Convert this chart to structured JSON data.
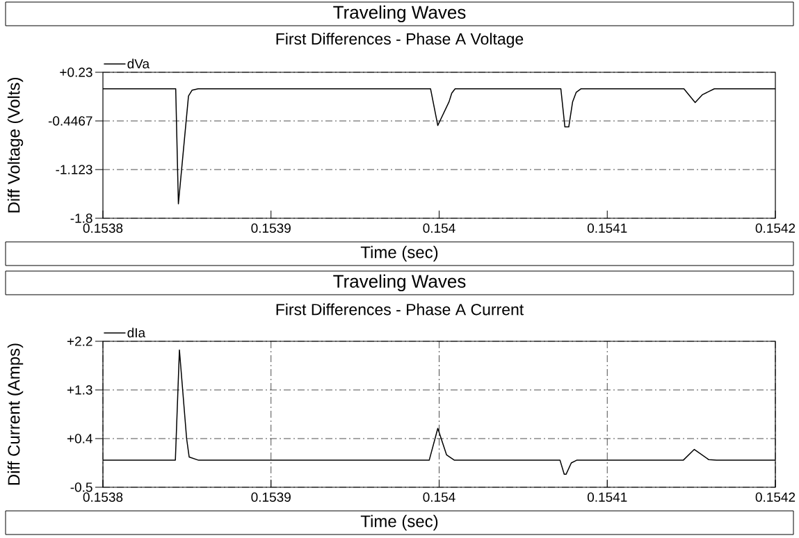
{
  "chart_data": [
    {
      "type": "line",
      "title": "Traveling Waves",
      "subtitle": "First Differences - Phase A Voltage",
      "xlabel": "Time (sec)",
      "ylabel": "Diff Voltage (Volts)",
      "xlim": [
        0.1538,
        0.1542
      ],
      "xticks": [
        0.1538,
        0.1539,
        0.154,
        0.1541,
        0.1542
      ],
      "ylim": [
        -1.8,
        0.23
      ],
      "yticks": [
        {
          "value": 0.23,
          "label": "+0.23"
        },
        -0.4467,
        -1.123,
        -1.8
      ],
      "grid": "y",
      "legend": "top left",
      "series": [
        {
          "name": "dVa",
          "color": "#000000",
          "x": [
            0.1538,
            0.1538433,
            0.1538449,
            0.1538509,
            0.153853,
            0.1538566,
            0.1539949,
            0.1539992,
            0.1540059,
            0.1540075,
            0.1540095,
            0.1540724,
            0.1540748,
            0.1540771,
            0.1540794,
            0.1540815,
            0.1540843,
            0.1541456,
            0.1541523,
            0.1541567,
            0.1541637,
            0.1542
          ],
          "values": [
            0,
            0,
            -1.6,
            -0.1,
            -0.02,
            0,
            0,
            -0.51,
            -0.18,
            -0.06,
            0,
            0,
            -0.53,
            -0.53,
            -0.18,
            -0.05,
            0,
            0,
            -0.19,
            -0.08,
            0,
            0
          ]
        }
      ]
    },
    {
      "type": "line",
      "title": "Traveling Waves",
      "subtitle": "First Differences - Phase A Current",
      "xlabel": "Time (sec)",
      "ylabel": "Diff Current (Amps)",
      "xlim": [
        0.1538,
        0.1542
      ],
      "xticks": [
        0.1538,
        0.1539,
        0.154,
        0.1541,
        0.1542
      ],
      "ylim": [
        -0.5,
        2.2
      ],
      "yticks": [
        {
          "value": 2.2,
          "label": "+2.2"
        },
        {
          "value": 1.3,
          "label": "+1.3"
        },
        {
          "value": 0.4,
          "label": "+0.4"
        },
        -0.5
      ],
      "grid": true,
      "legend": "top left",
      "series": [
        {
          "name": "dIa",
          "color": "#000000",
          "x": [
            0.1538,
            0.1538431,
            0.1538455,
            0.1538498,
            0.1538513,
            0.1538569,
            0.1539941,
            0.1539992,
            0.1540044,
            0.1540091,
            0.1540719,
            0.1540744,
            0.1540755,
            0.1540786,
            0.1540818,
            0.1541452,
            0.1541518,
            0.1541604,
            0.154165,
            0.1542
          ],
          "values": [
            0,
            0,
            2.04,
            0.4,
            0.06,
            0,
            0,
            0.59,
            0.1,
            0,
            0,
            -0.26,
            -0.26,
            -0.05,
            0,
            0,
            0.2,
            0.01,
            0,
            0
          ]
        }
      ]
    }
  ]
}
